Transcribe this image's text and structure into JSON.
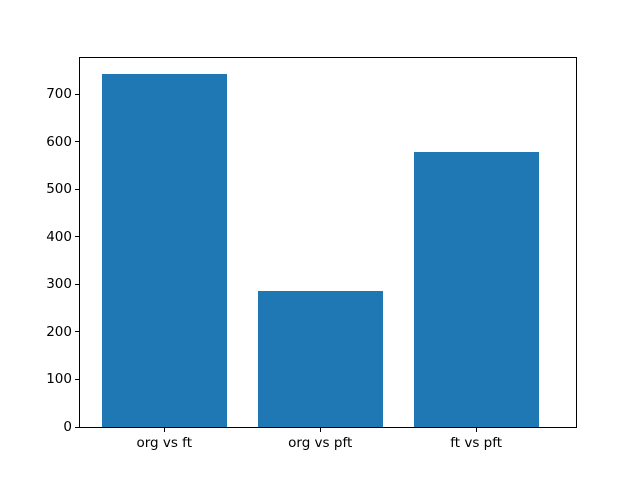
{
  "chart_data": {
    "type": "bar",
    "title": "",
    "categories": [
      "org vs ft",
      "org vs pft",
      "ft vs pft"
    ],
    "values": [
      743,
      285,
      578
    ],
    "bar_color": "#1f77b4",
    "xlabel": "",
    "ylabel": "",
    "ylim": [
      0,
      776
    ],
    "yticks": [
      0,
      100,
      200,
      300,
      400,
      500,
      600,
      700
    ],
    "xlim": [
      -0.54,
      2.64
    ],
    "bar_width_units": 0.8,
    "grid": false,
    "legend": "none",
    "background": "#ffffff",
    "spine_color": "#000000"
  }
}
